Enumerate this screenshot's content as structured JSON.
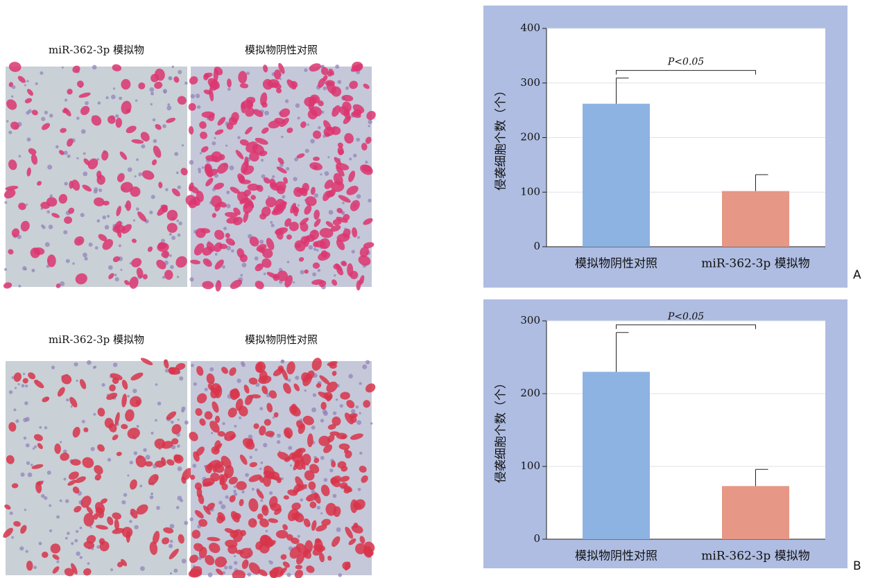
{
  "micrographs": [
    {
      "labels": [
        "miR-362-3p 模拟物",
        "模拟物阴性对照"
      ]
    },
    {
      "labels": [
        "miR-362-3p 模拟物",
        "模拟物阴性对照"
      ]
    }
  ],
  "chart_data": [
    {
      "type": "bar",
      "panel": "A",
      "y_label": "侵袭细胞个数（个）",
      "annotation": "P<0.05",
      "categories": [
        "模拟物阴性对照",
        "miR-362-3p 模拟物"
      ],
      "values": [
        262,
        102
      ],
      "errors": [
        47,
        30
      ],
      "colors": [
        "#8db3e2",
        "#e69785"
      ],
      "ylim": [
        0,
        400
      ],
      "yticks": [
        0,
        100,
        200,
        300,
        400
      ],
      "grid": true
    },
    {
      "type": "bar",
      "panel": "B",
      "y_label": "侵袭细胞个数（个）",
      "annotation": "P<0.05",
      "categories": [
        "模拟物阴性对照",
        "miR-362-3p 模拟物"
      ],
      "values": [
        230,
        73
      ],
      "errors": [
        54,
        23
      ],
      "colors": [
        "#8db3e2",
        "#e69785"
      ],
      "ylim": [
        0,
        300
      ],
      "yticks": [
        0,
        100,
        200,
        300
      ],
      "grid": true
    }
  ]
}
